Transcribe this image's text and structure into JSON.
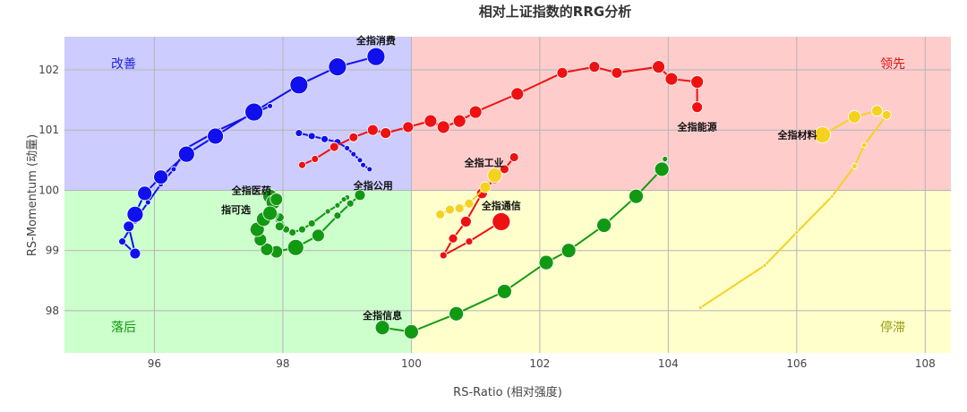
{
  "chart_data": {
    "type": "scatter",
    "title": "相对上证指数的RRG分析",
    "xlabel": "RS-Ratio (相对强度)",
    "ylabel": "RS-Momentum (动量)",
    "xlim": [
      94.6,
      108.4
    ],
    "ylim": [
      97.3,
      102.55
    ],
    "xticks": [
      "96",
      "98",
      "100",
      "102",
      "104",
      "106",
      "108"
    ],
    "yticks": [
      "98",
      "99",
      "100",
      "101",
      "102"
    ],
    "center": {
      "x": 100,
      "y": 100
    },
    "grid": true,
    "legend": "none",
    "quadrants": {
      "improving": {
        "label": "改善",
        "fill": "#ccccff",
        "text_color": "#2222dd"
      },
      "leading": {
        "label": "领先",
        "fill": "#ffcccc",
        "text_color": "#dd1111"
      },
      "lagging": {
        "label": "落后",
        "fill": "#ccffcc",
        "text_color": "#119911"
      },
      "weakening": {
        "label": "停滞",
        "fill": "#ffffcc",
        "text_color": "#999911"
      }
    },
    "series": [
      {
        "name": "全指消费",
        "color": "#1010ee",
        "x": [
          97.8,
          97.5,
          97.0,
          96.5,
          96.3,
          96.1,
          95.9,
          95.7,
          95.5,
          95.7,
          95.6,
          95.7,
          95.85,
          96.1,
          96.5,
          96.95,
          97.55,
          98.25,
          98.85,
          99.45
        ],
        "y": [
          101.4,
          101.25,
          101.0,
          100.7,
          100.35,
          100.1,
          99.8,
          99.5,
          99.15,
          98.95,
          99.4,
          99.6,
          99.95,
          100.22,
          100.6,
          100.9,
          101.3,
          101.75,
          102.05,
          102.22
        ],
        "sizes": [
          3,
          3,
          3,
          3,
          3,
          3,
          3,
          4,
          4,
          6,
          6,
          9,
          8,
          8,
          9,
          9,
          10,
          10,
          10,
          10
        ]
      },
      {
        "name": "全指公用",
        "color": "#1010ee",
        "x": [
          98.25,
          98.45,
          98.65,
          98.85,
          99.0,
          99.1,
          99.2,
          99.25,
          99.35
        ],
        "y": [
          100.95,
          100.9,
          100.85,
          100.8,
          100.7,
          100.6,
          100.5,
          100.42,
          100.35
        ],
        "sizes": [
          4,
          4,
          4,
          4,
          3,
          3,
          3,
          3,
          3
        ]
      },
      {
        "name": "全指能源",
        "color": "#ee1111",
        "x": [
          98.3,
          98.5,
          98.8,
          99.1,
          99.4,
          99.6,
          99.95,
          100.3,
          100.5,
          100.75,
          101.0,
          101.65,
          102.35,
          102.85,
          103.2,
          103.85,
          104.05,
          104.45,
          104.45
        ],
        "y": [
          100.42,
          100.52,
          100.72,
          100.88,
          101.0,
          100.95,
          101.05,
          101.15,
          101.05,
          101.15,
          101.3,
          101.6,
          101.95,
          102.05,
          101.95,
          102.05,
          101.85,
          101.8,
          101.38
        ],
        "sizes": [
          4,
          4,
          5,
          5,
          6,
          6,
          6,
          7,
          7,
          7,
          7,
          7,
          6,
          6,
          6,
          7,
          7,
          7,
          6
        ]
      },
      {
        "name": "全指通信",
        "color": "#ee1111",
        "x": [
          101.6,
          101.45,
          101.3,
          101.1,
          100.85,
          100.65,
          100.5,
          100.9,
          101.4
        ],
        "y": [
          100.55,
          100.35,
          100.2,
          99.95,
          99.48,
          99.2,
          98.92,
          99.15,
          99.48
        ],
        "sizes": [
          5,
          5,
          6,
          6,
          6,
          5,
          4,
          4,
          10
        ]
      },
      {
        "name": "全指工业",
        "color": "#f5d220",
        "x": [
          100.45,
          100.6,
          100.75,
          100.9,
          101.15,
          101.3
        ],
        "y": [
          99.6,
          99.68,
          99.7,
          99.78,
          100.05,
          100.25
        ],
        "sizes": [
          5,
          5,
          5,
          5,
          6,
          8
        ]
      },
      {
        "name": "全指材料",
        "color": "#f5d220",
        "x": [
          104.5,
          105.5,
          106.0,
          106.55,
          106.9,
          107.05,
          107.4,
          107.25,
          106.9,
          106.4
        ],
        "y": [
          98.05,
          98.75,
          99.3,
          99.9,
          100.4,
          100.75,
          101.25,
          101.32,
          101.22,
          100.92
        ],
        "sizes": [
          2,
          2,
          2,
          2,
          3,
          3,
          5,
          6,
          7,
          9
        ]
      },
      {
        "name": "全指医药",
        "color": "#129912",
        "x": [
          99.0,
          98.95,
          98.85,
          98.7,
          98.45,
          98.3,
          98.15,
          98.05,
          97.95,
          97.95,
          97.85,
          97.8,
          97.85,
          97.9
        ],
        "y": [
          99.88,
          99.85,
          99.75,
          99.65,
          99.45,
          99.35,
          99.3,
          99.35,
          99.55,
          99.4,
          99.6,
          99.9,
          99.8,
          99.85
        ],
        "sizes": [
          3,
          3,
          3,
          3,
          4,
          4,
          4,
          4,
          5,
          5,
          6,
          8,
          8,
          7
        ]
      },
      {
        "name": "指可选",
        "color": "#129912",
        "x": [
          99.2,
          99.05,
          98.85,
          98.55,
          98.2,
          97.9,
          97.75,
          97.65,
          97.6,
          97.7,
          97.8
        ],
        "y": [
          99.92,
          99.78,
          99.58,
          99.25,
          99.05,
          98.98,
          99.02,
          99.18,
          99.35,
          99.52,
          99.62
        ],
        "sizes": [
          6,
          4,
          4,
          7,
          9,
          7,
          7,
          7,
          8,
          8,
          8
        ]
      },
      {
        "name": "全指信息",
        "color": "#129912",
        "x": [
          103.95,
          103.9,
          103.5,
          103.0,
          102.45,
          102.1,
          101.45,
          100.7,
          100.0,
          99.55
        ],
        "y": [
          100.52,
          100.35,
          99.9,
          99.42,
          99.0,
          98.8,
          98.32,
          97.95,
          97.65,
          97.72
        ],
        "sizes": [
          3,
          8,
          8,
          8,
          8,
          8,
          8,
          8,
          8,
          8
        ]
      }
    ]
  }
}
